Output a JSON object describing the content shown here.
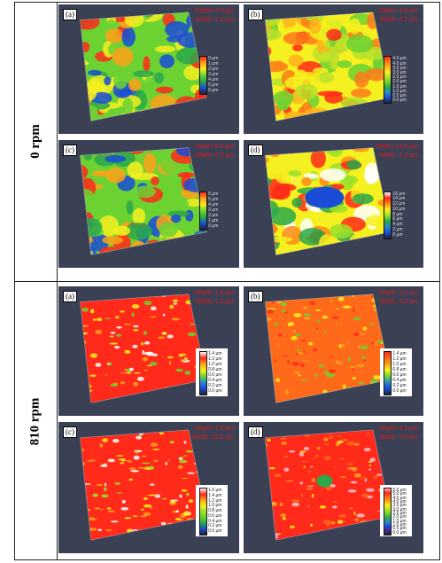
{
  "rows": [
    {
      "label": "0 rpm",
      "panels": [
        {
          "label": "(a)",
          "stats": [
            "Depth: 4.5 µm",
            "Width: 1.5 µm"
          ],
          "scale": [
            "0 µm",
            "1 µm",
            "2 µm",
            "3 µm",
            "4 µm",
            "5 µm",
            "6 µm"
          ],
          "colors": [
            "#ff2a1a",
            "#ffa21a",
            "#f5f01f",
            "#6cd232",
            "#2aa84a",
            "#1a4cd8",
            "#222233"
          ]
        },
        {
          "label": "(b)",
          "stats": [
            "Depth: 4.5 µm",
            "Width: 4.7 µm"
          ],
          "scale": [
            "4.5 µm",
            "4.0 µm",
            "3.5 µm",
            "3.0 µm",
            "2.5 µm",
            "2.0 µm",
            "1.5 µm",
            "1.0 µm",
            "0.5 µm",
            "0.0 µm"
          ],
          "colors": [
            "#ff2a1a",
            "#ff7a1a",
            "#ffb21a",
            "#f5f01f",
            "#b8e02a",
            "#6cd232",
            "#2aa84a",
            "#2a8ac8",
            "#1a4cd8",
            "#222233"
          ]
        },
        {
          "label": "(c)",
          "stats": [
            "Depth: 6.5 µm",
            "Width: 4.5 µm"
          ],
          "scale": [
            "6 µm",
            "5 µm",
            "4 µm",
            "3 µm",
            "2 µm",
            "1 µm",
            "0 µm"
          ],
          "colors": [
            "#ff2a1a",
            "#ffa21a",
            "#f5f01f",
            "#6cd232",
            "#2aa84a",
            "#1a4cd8",
            "#222233"
          ]
        },
        {
          "label": "(d)",
          "stats": [
            "Depth: 16.0 µm",
            "Width: 7.3 µm"
          ],
          "scale": [
            "16 µm",
            "14 µm",
            "12 µm",
            "10 µm",
            "8 µm",
            "6 µm",
            "4 µm",
            "2 µm",
            "0 µm"
          ],
          "colors": [
            "#ffffff",
            "#ff2a1a",
            "#ff8a1a",
            "#f5f01f",
            "#9be02a",
            "#2aa84a",
            "#2a8ac8",
            "#1a4cd8",
            "#222233"
          ]
        }
      ]
    },
    {
      "label": "810 rpm",
      "panels": [
        {
          "label": "(a)",
          "stats": [
            "Depth: 1.4 µm",
            "Width: 1.5 µm"
          ],
          "scale": [
            "1.4 µm",
            "1.2 µm",
            "1.0 µm",
            "0.8 µm",
            "0.6 µm",
            "0.4 µm",
            "0.2 µm",
            "0.0 µm"
          ],
          "colors": [
            "#ffffff",
            "#ff2a1a",
            "#ffa21a",
            "#f5f01f",
            "#6cd232",
            "#2a8ac8",
            "#1a4cd8",
            "#222233"
          ]
        },
        {
          "label": "(b)",
          "stats": [
            "Depth: 1.2 µm",
            "Width: 3.0 µm"
          ],
          "scale": [
            "1.4 µm",
            "1.2 µm",
            "1.0 µm",
            "0.8 µm",
            "0.6 µm",
            "0.4 µm",
            "0.2 µm",
            "0.0 µm"
          ],
          "colors": [
            "#ff2a1a",
            "#ff6a1a",
            "#ffa21a",
            "#f5f01f",
            "#6cd232",
            "#2a8ac8",
            "#1a4cd8",
            "#222233"
          ]
        },
        {
          "label": "(c)",
          "stats": [
            "Depth: 1.5 µm",
            "Width: 10.0 µm"
          ],
          "scale": [
            "1.6 µm",
            "1.4 µm",
            "1.2 µm",
            "1.0 µm",
            "0.8 µm",
            "0.6 µm",
            "0.4 µm",
            "0.2 µm",
            "0.0 µm"
          ],
          "colors": [
            "#ffffff",
            "#ff2a1a",
            "#ffa21a",
            "#f5f01f",
            "#9be02a",
            "#6cd232",
            "#2aa84a",
            "#1a4cd8",
            "#222233"
          ]
        },
        {
          "label": "(d)",
          "stats": [
            "Depth: 5.1 µm",
            "Width: 7.8 µm"
          ],
          "scale": [
            "5.5 µm",
            "5.0 µm",
            "4.5 µm",
            "4.0 µm",
            "3.5 µm",
            "3.0 µm",
            "2.5 µm",
            "2.0 µm",
            "1.5 µm",
            "1.0 µm",
            "0.5 µm",
            "0.0 µm"
          ],
          "colors": [
            "#ffc0cb",
            "#ff2a1a",
            "#ff6a1a",
            "#ffa21a",
            "#f5f01f",
            "#b8e02a",
            "#6cd232",
            "#2aa84a",
            "#2a8ac8",
            "#1a4cd8",
            "#4a2a8a",
            "#222233"
          ]
        }
      ]
    }
  ]
}
